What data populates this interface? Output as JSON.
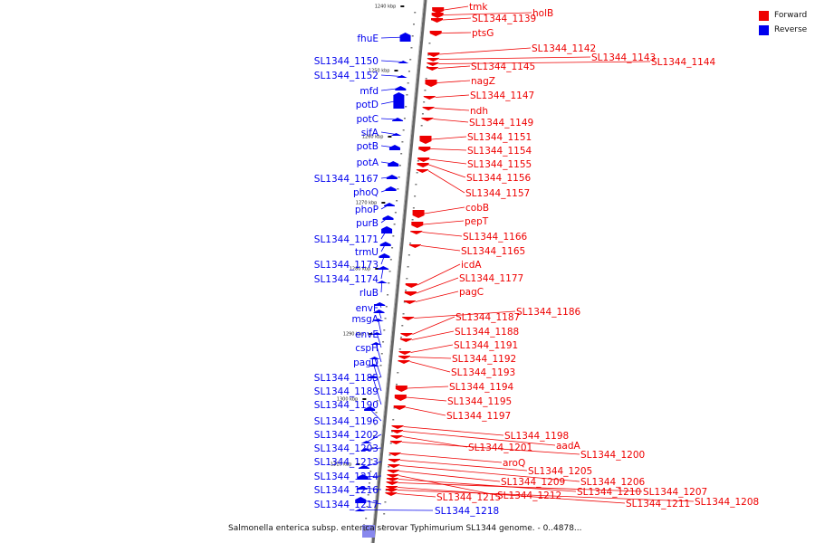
{
  "caption": "Salmonella enterica subsp. enterica serovar Typhimurium SL1344 genome. - 0..4878...",
  "legend": [
    {
      "label": "Forward",
      "color": "#ee0000"
    },
    {
      "label": "Reverse",
      "color": "#0000ee"
    }
  ],
  "colors": {
    "forward": "#ee0000",
    "reverse": "#0000ee",
    "backbone": "#888888"
  },
  "ticks": [
    "1240 kbp",
    "1250 kbp",
    "1260 kbp",
    "1270 kbp",
    "1280 kbp",
    "1290 kbp",
    "1300 kbp",
    "1310 kbp"
  ],
  "reverse_genes": [
    "fhuE",
    "SL1344_1150",
    "SL1344_1152",
    "mfd",
    "potD",
    "potC",
    "sifA",
    "potB",
    "potA",
    "SL1344_1167",
    "phoQ",
    "phoP",
    "purB",
    "SL1344_1171",
    "trmU",
    "SL1344_1173",
    "SL1344_1174",
    "rluB",
    "envF",
    "msgA",
    "envE",
    "cspH",
    "pagD",
    "SL1344_1185",
    "SL1344_1189",
    "SL1344_1190",
    "SL1344_1196",
    "SL1344_1202",
    "SL1344_1203",
    "SL1344_1213",
    "SL1344_1214",
    "SL1344_1216",
    "SL1344_1217",
    "SL1344_1218"
  ],
  "forward_genes": [
    "tmk",
    "holB",
    "SL1344_1139",
    "ptsG",
    "SL1344_1142",
    "SL1344_1143",
    "SL1344_1144",
    "SL1344_1145",
    "nagZ",
    "SL1344_1147",
    "ndh",
    "SL1344_1149",
    "SL1344_1151",
    "SL1344_1154",
    "SL1344_1155",
    "SL1344_1156",
    "SL1344_1157",
    "cobB",
    "pepT",
    "SL1344_1166",
    "SL1344_1165",
    "icdA",
    "SL1344_1177",
    "pagC",
    "SL1344_1186",
    "SL1344_1187",
    "SL1344_1188",
    "SL1344_1191",
    "SL1344_1192",
    "SL1344_1193",
    "SL1344_1194",
    "SL1344_1195",
    "SL1344_1197",
    "SL1344_1198",
    "aadA",
    "SL1344_1201",
    "SL1344_1200",
    "aroQ",
    "SL1344_1205",
    "SL1344_1206",
    "SL1344_1209",
    "SL1344_1212",
    "SL1344_1210",
    "SL1344_1207",
    "SL1344_1215",
    "SL1344_1211",
    "SL1344_1208"
  ]
}
